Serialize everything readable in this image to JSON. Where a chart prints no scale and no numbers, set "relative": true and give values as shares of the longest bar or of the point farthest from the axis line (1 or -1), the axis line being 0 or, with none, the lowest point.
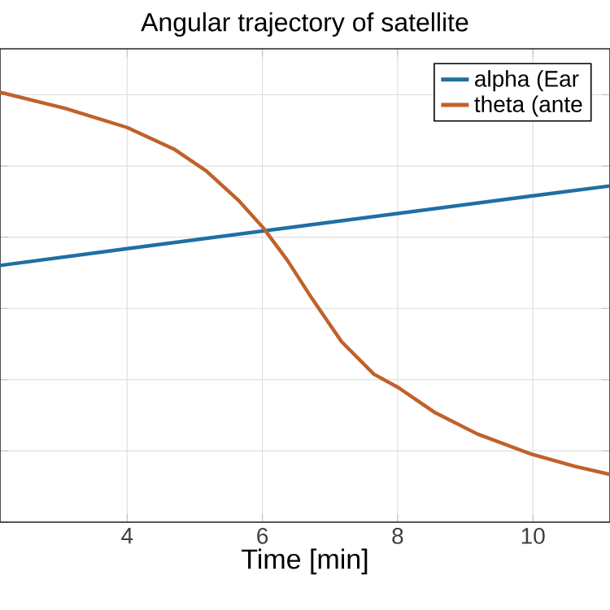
{
  "chart_data": {
    "type": "line",
    "title": "Angular trajectory of satellite",
    "xlabel": "Time [min]",
    "relative": true,
    "xlim": [
      2.12,
      11.14
    ],
    "xticks": [
      4,
      6,
      8,
      10
    ],
    "grid": true,
    "legend": "top right",
    "line_style": "solid",
    "marker": "none",
    "series": [
      {
        "name": "alpha (Ear",
        "color": "#1f6fa3",
        "x": [
          2.12,
          4,
          6,
          8,
          10,
          11.14
        ],
        "values": [
          0.597,
          0.636,
          0.677,
          0.718,
          0.759,
          0.782
        ]
      },
      {
        "name": "theta (ante",
        "color": "#c0612b",
        "x": [
          2.12,
          3.09,
          4.0,
          4.69,
          5.17,
          5.65,
          6.01,
          6.37,
          6.73,
          7.17,
          7.65,
          8.01,
          8.54,
          9.18,
          9.98,
          10.62,
          11.14
        ],
        "values": [
          1.0,
          0.962,
          0.918,
          0.868,
          0.817,
          0.748,
          0.685,
          0.609,
          0.521,
          0.42,
          0.344,
          0.313,
          0.256,
          0.205,
          0.158,
          0.13,
          0.111
        ]
      }
    ]
  }
}
